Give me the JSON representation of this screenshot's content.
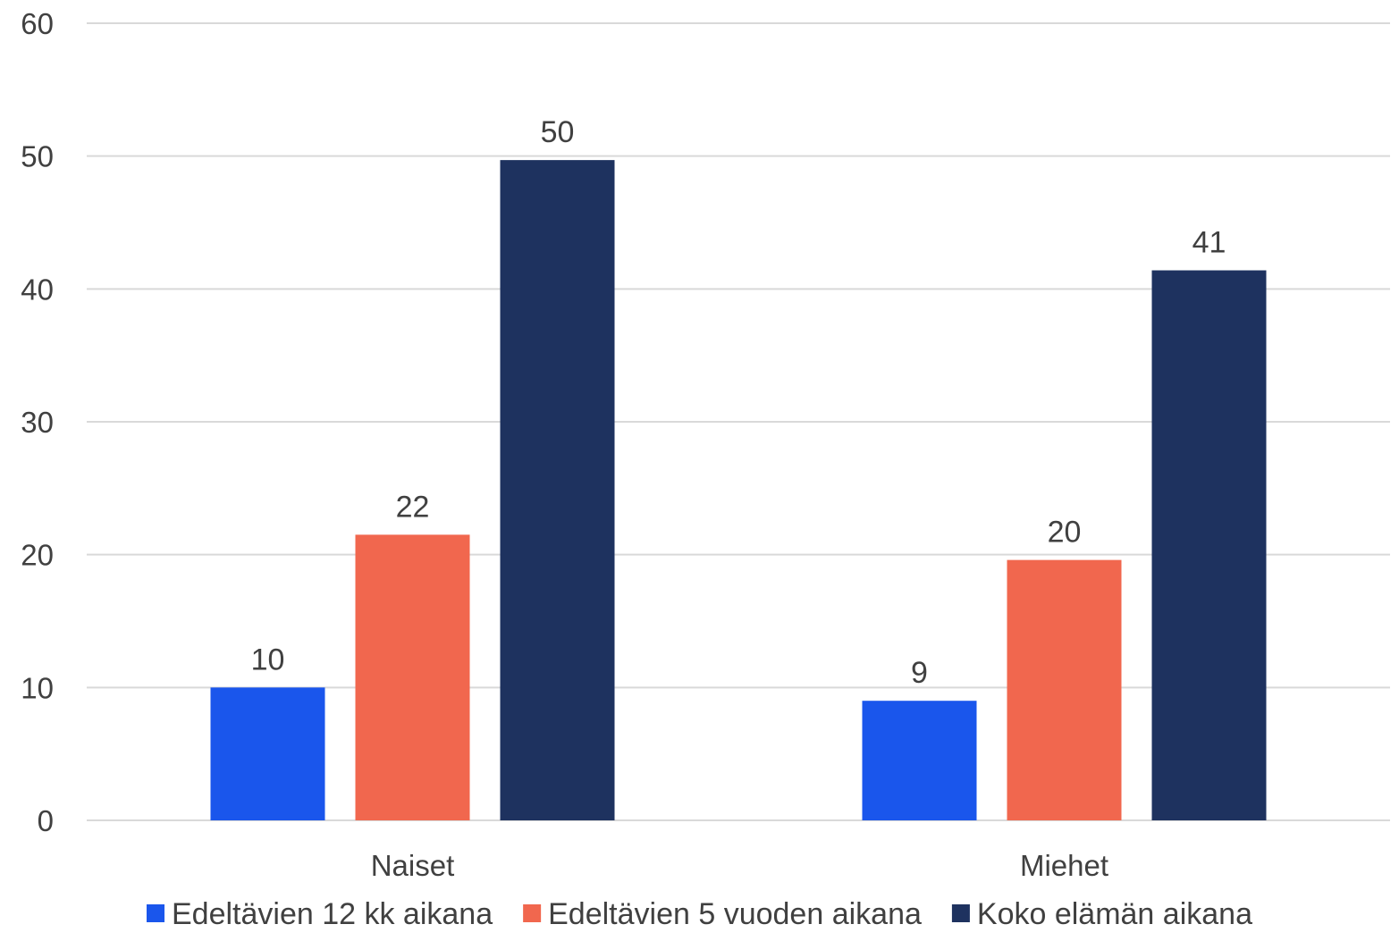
{
  "chart_data": {
    "type": "bar",
    "categories": [
      "Naiset",
      "Miehet"
    ],
    "series": [
      {
        "name": "Edeltävien 12 kk aikana",
        "values": [
          10,
          9
        ],
        "labels": [
          "10",
          "9"
        ],
        "color": "#1a56ec"
      },
      {
        "name": "Edeltävien 5 vuoden aikana",
        "values": [
          21.5,
          19.6
        ],
        "labels": [
          "22",
          "20"
        ],
        "color": "#f1674e"
      },
      {
        "name": "Koko elämän aikana",
        "values": [
          49.7,
          41.4
        ],
        "labels": [
          "50",
          "41"
        ],
        "color": "#1e325f"
      }
    ],
    "ylim": [
      0,
      60
    ],
    "yticks": [
      "0",
      "10",
      "20",
      "30",
      "40",
      "50",
      "60"
    ],
    "grid": true,
    "legend": "bottom",
    "title": "",
    "xlabel": "",
    "ylabel": ""
  }
}
